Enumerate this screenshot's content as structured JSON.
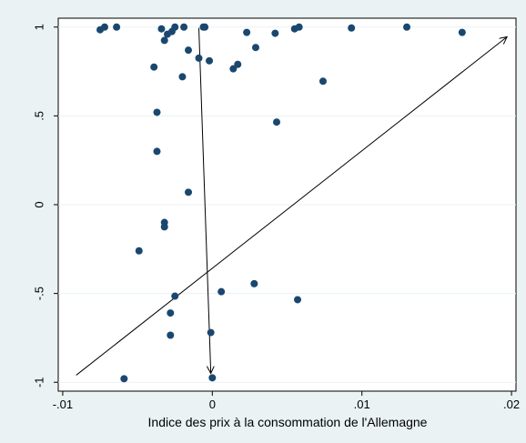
{
  "colors": {
    "outer_background": "#eaf2f3",
    "plot_background": "#ffffff",
    "marker": "#1a476f",
    "arrow": "#000000",
    "text": "#000000"
  },
  "chart_data": {
    "type": "scatter",
    "xlabel": "Indice des prix à la consommation de l'Allemagne",
    "ylabel": "",
    "xlim": [
      -0.0103,
      0.0203
    ],
    "ylim": [
      -1.05,
      1.05
    ],
    "x_ticks": [
      {
        "value": -0.01,
        "label": "-.01"
      },
      {
        "value": 0,
        "label": "0"
      },
      {
        "value": 0.01,
        "label": ".01"
      },
      {
        "value": 0.02,
        "label": ".02"
      }
    ],
    "y_ticks": [
      {
        "value": -1,
        "label": "-1"
      },
      {
        "value": -0.5,
        "label": "-.5"
      },
      {
        "value": 0,
        "label": "0"
      },
      {
        "value": 0.5,
        "label": ".5"
      },
      {
        "value": 1,
        "label": "1"
      }
    ],
    "grid": "horizontal",
    "legend": "none",
    "points": [
      {
        "x": -0.0075,
        "y": 0.985
      },
      {
        "x": -0.0072,
        "y": 1.0
      },
      {
        "x": -0.0064,
        "y": 1.0
      },
      {
        "x": -0.0034,
        "y": 0.99
      },
      {
        "x": -0.003,
        "y": 0.96
      },
      {
        "x": -0.0027,
        "y": 0.975
      },
      {
        "x": -0.0025,
        "y": 1.0
      },
      {
        "x": -0.0019,
        "y": 1.0
      },
      {
        "x": -0.0006,
        "y": 1.0
      },
      {
        "x": -0.0005,
        "y": 1.0
      },
      {
        "x": 0.0023,
        "y": 0.97
      },
      {
        "x": 0.0042,
        "y": 0.965
      },
      {
        "x": 0.0055,
        "y": 0.99
      },
      {
        "x": 0.0058,
        "y": 1.0
      },
      {
        "x": 0.0093,
        "y": 0.995
      },
      {
        "x": 0.013,
        "y": 1.0
      },
      {
        "x": 0.0167,
        "y": 0.97
      },
      {
        "x": -0.0032,
        "y": 0.925
      },
      {
        "x": -0.0016,
        "y": 0.87
      },
      {
        "x": 0.0029,
        "y": 0.885
      },
      {
        "x": -0.0009,
        "y": 0.825
      },
      {
        "x": -0.0002,
        "y": 0.81
      },
      {
        "x": 0.0017,
        "y": 0.79
      },
      {
        "x": -0.0039,
        "y": 0.775
      },
      {
        "x": 0.0014,
        "y": 0.765
      },
      {
        "x": -0.002,
        "y": 0.72
      },
      {
        "x": 0.0074,
        "y": 0.695
      },
      {
        "x": -0.0037,
        "y": 0.52
      },
      {
        "x": 0.0043,
        "y": 0.465
      },
      {
        "x": -0.0037,
        "y": 0.3
      },
      {
        "x": -0.0016,
        "y": 0.07
      },
      {
        "x": -0.0032,
        "y": -0.1
      },
      {
        "x": -0.0032,
        "y": -0.125
      },
      {
        "x": -0.0049,
        "y": -0.26
      },
      {
        "x": 0.0028,
        "y": -0.445
      },
      {
        "x": 0.0006,
        "y": -0.49
      },
      {
        "x": -0.0025,
        "y": -0.515
      },
      {
        "x": 0.0057,
        "y": -0.535
      },
      {
        "x": -0.0028,
        "y": -0.61
      },
      {
        "x": -0.0001,
        "y": -0.72
      },
      {
        "x": -0.0028,
        "y": -0.735
      },
      {
        "x": -0.0059,
        "y": -0.98
      },
      {
        "x": 0.0,
        "y": -0.975
      }
    ],
    "arrows": [
      {
        "x1": -0.0091,
        "y1": -0.96,
        "x2": 0.0197,
        "y2": 0.945
      },
      {
        "x1": -0.0009,
        "y1": 0.995,
        "x2": -0.0001,
        "y2": -0.95
      }
    ]
  }
}
